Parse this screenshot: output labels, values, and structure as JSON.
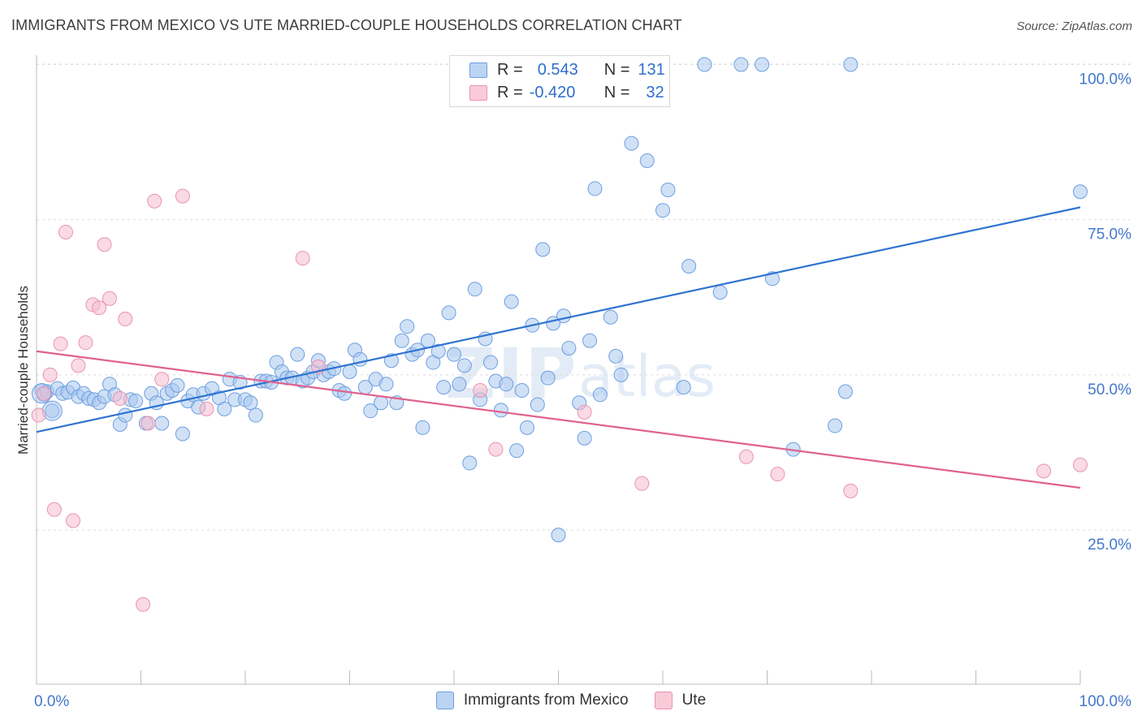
{
  "title": "IMMIGRANTS FROM MEXICO VS UTE MARRIED-COUPLE HOUSEHOLDS CORRELATION CHART",
  "source": "Source: ZipAtlas.com",
  "legend": {
    "rows": [
      {
        "r_label": "R =",
        "r_value": "0.543",
        "n_label": "N =",
        "n_value": "131"
      },
      {
        "r_label": "R =",
        "r_value": "-0.420",
        "n_label": "N =",
        "n_value": "32"
      }
    ]
  },
  "bottom_legend": [
    "Immigrants from Mexico",
    "Ute"
  ],
  "colors": {
    "blue_fill": "#a9c8ef",
    "blue_stroke": "#6d9fe0",
    "blue_line": "#2f74d0",
    "pink_fill": "#f6bccd",
    "pink_stroke": "#eb93ae",
    "pink_line": "#e0628e",
    "tick_label": "#4477cc"
  },
  "chart_data": {
    "type": "scatter",
    "title": "IMMIGRANTS FROM MEXICO VS UTE MARRIED-COUPLE HOUSEHOLDS CORRELATION CHART",
    "xlabel": "",
    "ylabel": "Married-couple Households",
    "xlim": [
      0,
      100
    ],
    "ylim": [
      0,
      105
    ],
    "x_tick_labels": [
      "0.0%",
      "100.0%"
    ],
    "y_ticks": [
      25,
      50,
      75,
      100
    ],
    "y_tick_labels": [
      "25.0%",
      "50.0%",
      "75.0%",
      "100.0%"
    ],
    "grid": "horizontal dashed",
    "legend_position": "top-center",
    "series": [
      {
        "name": "Immigrants from Mexico",
        "trend": {
          "x": [
            0,
            100
          ],
          "y": [
            40.8,
            77
          ]
        },
        "points": [
          [
            0.5,
            47.5
          ],
          [
            0.7,
            46.8
          ],
          [
            1.0,
            47.3
          ],
          [
            1.5,
            44.2
          ],
          [
            2.0,
            47.8
          ],
          [
            2.5,
            47.0
          ],
          [
            3.0,
            47.2
          ],
          [
            3.5,
            47.9
          ],
          [
            4.0,
            46.5
          ],
          [
            4.5,
            47.0
          ],
          [
            5.0,
            46.2
          ],
          [
            5.5,
            46.0
          ],
          [
            6.0,
            45.5
          ],
          [
            6.5,
            46.5
          ],
          [
            7.0,
            48.5
          ],
          [
            7.5,
            46.8
          ],
          [
            8.0,
            42.0
          ],
          [
            8.5,
            43.5
          ],
          [
            9.0,
            46.0
          ],
          [
            9.5,
            45.8
          ],
          [
            10.5,
            42.2
          ],
          [
            11.0,
            47.0
          ],
          [
            11.5,
            45.5
          ],
          [
            12.0,
            42.2
          ],
          [
            12.5,
            47.0
          ],
          [
            13.0,
            47.5
          ],
          [
            13.5,
            48.3
          ],
          [
            14.0,
            40.5
          ],
          [
            14.5,
            45.8
          ],
          [
            15.0,
            46.8
          ],
          [
            15.5,
            44.8
          ],
          [
            16.0,
            47.0
          ],
          [
            16.8,
            47.8
          ],
          [
            17.5,
            46.3
          ],
          [
            18.0,
            44.5
          ],
          [
            18.5,
            49.3
          ],
          [
            19.0,
            46.0
          ],
          [
            19.5,
            48.8
          ],
          [
            20.0,
            46.0
          ],
          [
            20.5,
            45.5
          ],
          [
            21.0,
            43.5
          ],
          [
            21.5,
            49.0
          ],
          [
            22.0,
            49.0
          ],
          [
            22.5,
            48.8
          ],
          [
            23.0,
            52.0
          ],
          [
            23.5,
            50.5
          ],
          [
            24.0,
            49.5
          ],
          [
            24.5,
            49.5
          ],
          [
            25.0,
            53.3
          ],
          [
            25.5,
            49.0
          ],
          [
            26.0,
            49.5
          ],
          [
            26.5,
            50.5
          ],
          [
            27.0,
            52.3
          ],
          [
            27.5,
            50.0
          ],
          [
            28.0,
            50.5
          ],
          [
            28.5,
            51.0
          ],
          [
            29.0,
            47.5
          ],
          [
            29.5,
            47.0
          ],
          [
            30.0,
            50.5
          ],
          [
            30.5,
            54.0
          ],
          [
            31.0,
            52.5
          ],
          [
            31.5,
            48.0
          ],
          [
            32.0,
            44.2
          ],
          [
            32.5,
            49.3
          ],
          [
            33.0,
            45.5
          ],
          [
            33.5,
            48.5
          ],
          [
            34.0,
            52.3
          ],
          [
            34.5,
            45.5
          ],
          [
            35.0,
            55.5
          ],
          [
            35.5,
            57.8
          ],
          [
            36.0,
            53.3
          ],
          [
            36.5,
            54.0
          ],
          [
            37.0,
            41.5
          ],
          [
            37.5,
            55.5
          ],
          [
            38.0,
            52.0
          ],
          [
            38.5,
            53.8
          ],
          [
            39.0,
            48.0
          ],
          [
            39.5,
            60.0
          ],
          [
            40.0,
            53.3
          ],
          [
            40.5,
            48.5
          ],
          [
            41.0,
            51.5
          ],
          [
            41.5,
            35.8
          ],
          [
            42.0,
            63.8
          ],
          [
            42.5,
            46.0
          ],
          [
            43.0,
            55.8
          ],
          [
            43.5,
            52.0
          ],
          [
            44.0,
            49.0
          ],
          [
            44.5,
            44.3
          ],
          [
            45.0,
            48.5
          ],
          [
            45.5,
            61.8
          ],
          [
            46.0,
            37.8
          ],
          [
            46.5,
            47.5
          ],
          [
            47.0,
            41.5
          ],
          [
            47.5,
            58.0
          ],
          [
            48.0,
            45.2
          ],
          [
            48.5,
            70.2
          ],
          [
            49.0,
            49.5
          ],
          [
            49.5,
            58.3
          ],
          [
            50.0,
            24.2
          ],
          [
            50.5,
            59.5
          ],
          [
            51.0,
            54.3
          ],
          [
            52.0,
            45.5
          ],
          [
            52.5,
            39.8
          ],
          [
            53.0,
            55.5
          ],
          [
            53.5,
            80.0
          ],
          [
            54.0,
            46.8
          ],
          [
            55.0,
            59.3
          ],
          [
            55.5,
            53.0
          ],
          [
            56.0,
            50.0
          ],
          [
            57.0,
            87.3
          ],
          [
            58.5,
            84.5
          ],
          [
            60.0,
            76.5
          ],
          [
            60.5,
            79.8
          ],
          [
            62.0,
            48.0
          ],
          [
            62.5,
            67.5
          ],
          [
            65.5,
            63.3
          ],
          [
            70.5,
            65.5
          ],
          [
            72.5,
            38.0
          ],
          [
            76.5,
            41.8
          ],
          [
            77.5,
            47.3
          ],
          [
            78,
            100
          ],
          [
            55.5,
            100
          ],
          [
            56.0,
            100
          ],
          [
            56.5,
            100
          ],
          [
            57.0,
            100
          ],
          [
            64.0,
            100
          ],
          [
            67.5,
            100
          ],
          [
            69.5,
            100
          ],
          [
            100,
            79.5
          ],
          [
            60.0,
            100
          ],
          [
            56.3,
            100
          ]
        ],
        "big_points": [
          [
            0.5,
            47.0
          ],
          [
            1.5,
            44.2
          ]
        ]
      },
      {
        "name": "Ute",
        "trend": {
          "x": [
            0,
            100
          ],
          "y": [
            53.8,
            31.8
          ]
        },
        "points": [
          [
            0.2,
            43.5
          ],
          [
            0.7,
            47.0
          ],
          [
            1.3,
            50.0
          ],
          [
            1.7,
            28.3
          ],
          [
            2.3,
            55.0
          ],
          [
            2.8,
            73.0
          ],
          [
            3.5,
            26.5
          ],
          [
            4.0,
            51.5
          ],
          [
            4.7,
            55.2
          ],
          [
            5.4,
            61.3
          ],
          [
            6.0,
            60.8
          ],
          [
            6.5,
            71.0
          ],
          [
            7.0,
            62.3
          ],
          [
            8.0,
            46.2
          ],
          [
            8.5,
            59.0
          ],
          [
            10.2,
            13.0
          ],
          [
            10.7,
            42.2
          ],
          [
            11.3,
            78.0
          ],
          [
            12.0,
            49.3
          ],
          [
            14.0,
            78.8
          ],
          [
            16.3,
            44.5
          ],
          [
            25.5,
            68.8
          ],
          [
            27.0,
            51.3
          ],
          [
            42.5,
            47.5
          ],
          [
            44.0,
            38.0
          ],
          [
            52.5,
            44.0
          ],
          [
            58.0,
            32.5
          ],
          [
            68.0,
            36.8
          ],
          [
            71.0,
            34.0
          ],
          [
            78.0,
            31.3
          ],
          [
            96.5,
            34.5
          ],
          [
            100,
            35.5
          ]
        ]
      }
    ]
  }
}
